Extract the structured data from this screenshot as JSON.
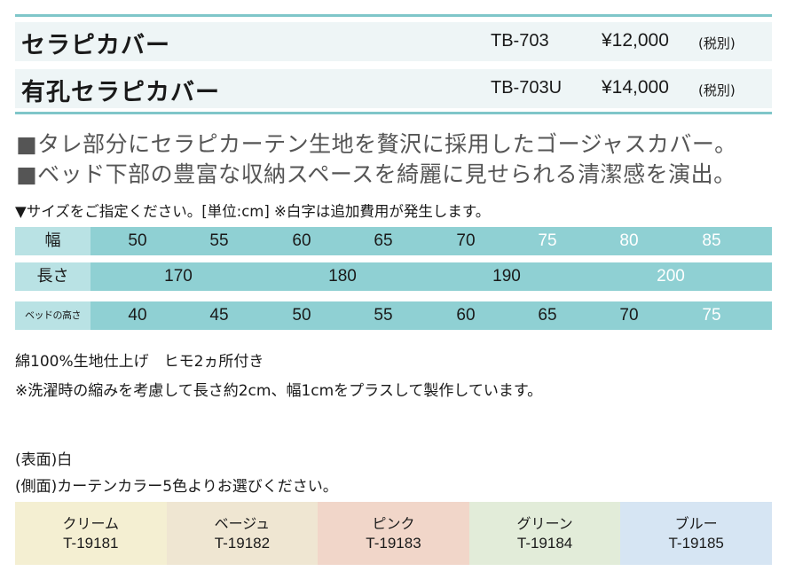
{
  "products": [
    {
      "name": "セラピカバー",
      "code": "TB-703",
      "price": "¥12,000",
      "tax": "(税別)"
    },
    {
      "name": "有孔セラピカバー",
      "code": "TB-703U",
      "price": "¥14,000",
      "tax": "(税別)"
    }
  ],
  "lead": [
    "■タレ部分にセラピカーテン生地を贅沢に採用したゴージャスカバー。",
    "■ベッド下部の豊富な収納スペースを綺麗に見せられる清潔感を演出。"
  ],
  "size_note": "▼サイズをご指定ください。[単位:cm] ※白字は追加費用が発生します。",
  "size_table": {
    "width": {
      "label": "幅",
      "values": [
        "50",
        "55",
        "60",
        "65",
        "70",
        "75",
        "80",
        "85"
      ],
      "extra_from": 5
    },
    "length": {
      "label": "長さ",
      "values": [
        "170",
        "180",
        "190",
        "200"
      ],
      "extra_from": 3
    },
    "bed_height": {
      "label": "ベッドの高さ",
      "values": [
        "40",
        "45",
        "50",
        "55",
        "60",
        "65",
        "70",
        "75"
      ],
      "extra_from": 7
    }
  },
  "material": "綿100%生地仕上げ　ヒモ2ヵ所付き",
  "shrink_note": "※洗濯時の縮みを考慮して長さ約2cm、幅1cmをプラスして製作しています。",
  "surface": "(表面)白",
  "side": "(側面)カーテンカラー5色よりお選びください。",
  "colors": [
    {
      "name": "クリーム",
      "code": "T-19181",
      "hex": "#f4efd2"
    },
    {
      "name": "ベージュ",
      "code": "T-19182",
      "hex": "#efe6d2"
    },
    {
      "name": "ピンク",
      "code": "T-19183",
      "hex": "#f1d6c9"
    },
    {
      "name": "グリーン",
      "code": "T-19184",
      "hex": "#e2ecd9"
    },
    {
      "name": "ブルー",
      "code": "T-19185",
      "hex": "#d6e5f3"
    }
  ],
  "accent": "#8fd0d3"
}
